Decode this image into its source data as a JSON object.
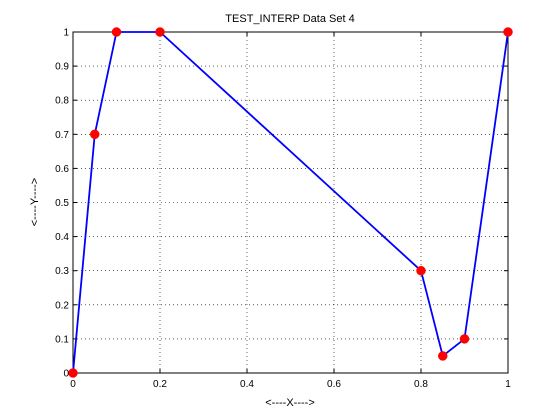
{
  "chart_data": {
    "type": "line",
    "title": "TEST_INTERP Data Set 4",
    "xlabel": "<----X---->",
    "ylabel": "<----Y---->",
    "xlim": [
      0,
      1
    ],
    "ylim": [
      0,
      1
    ],
    "grid": true,
    "x_ticks": [
      0,
      0.2,
      0.4,
      0.6,
      0.8,
      1
    ],
    "x_tick_labels": [
      "0",
      "0.2",
      "0.4",
      "0.6",
      "0.8",
      "1"
    ],
    "y_ticks": [
      0,
      0.1,
      0.2,
      0.3,
      0.4,
      0.5,
      0.6,
      0.7,
      0.8,
      0.9,
      1
    ],
    "y_tick_labels": [
      "0",
      "0.1",
      "0.2",
      "0.3",
      "0.4",
      "0.5",
      "0.6",
      "0.7",
      "0.8",
      "0.9",
      "1"
    ],
    "series": [
      {
        "x": [
          0,
          0.05,
          0.1,
          0.2,
          0.8,
          0.85,
          0.9,
          1
        ],
        "y": [
          0,
          0.7,
          1,
          1,
          0.3,
          0.05,
          0.1,
          1
        ],
        "line_color": "#0000ff",
        "marker_color": "#ff0000"
      }
    ]
  }
}
